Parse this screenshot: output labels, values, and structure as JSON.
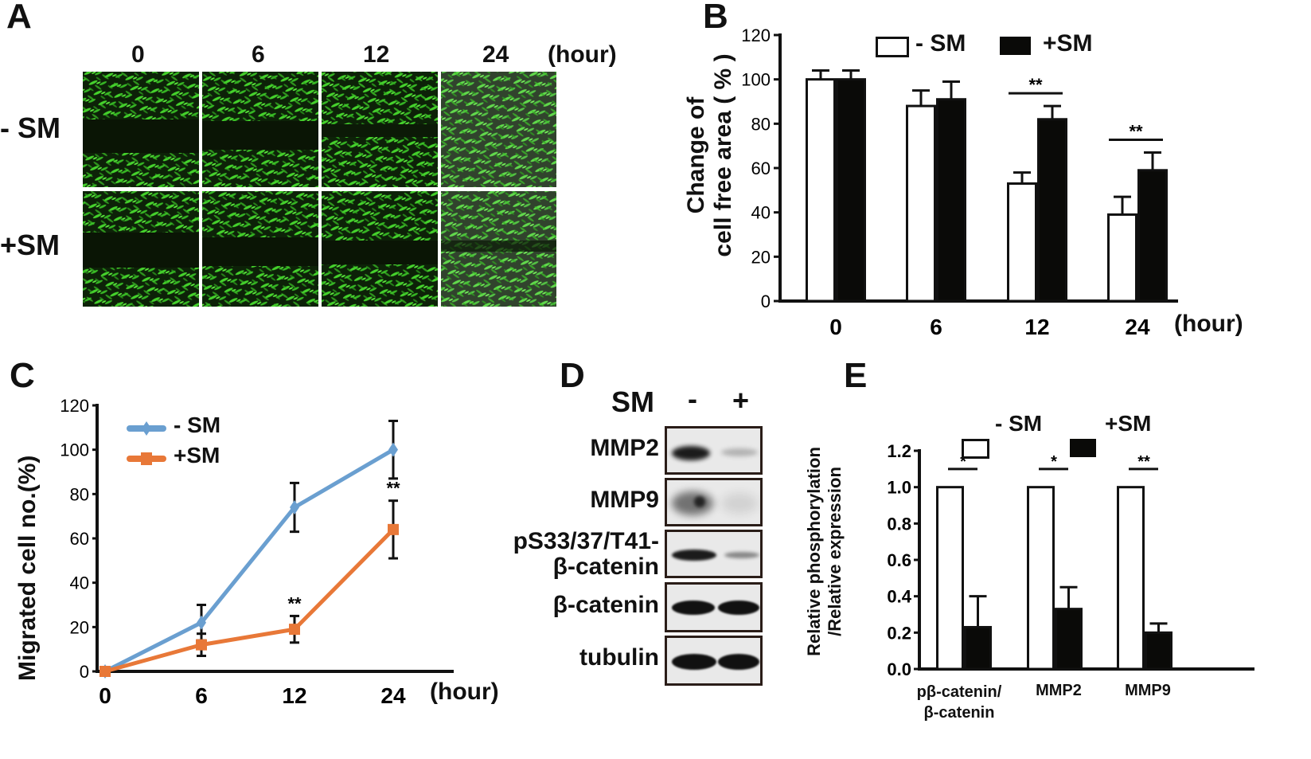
{
  "panels": {
    "A": {
      "letter": "A",
      "time_labels": [
        "0",
        "6",
        "12",
        "24"
      ],
      "unit": "(hour)",
      "row_labels": [
        "- SM",
        "+SM"
      ],
      "image_colors": {
        "cells": "#3fcf2a",
        "background": "#0b1a06"
      }
    },
    "B": {
      "letter": "B",
      "legend": [
        "- SM",
        "+SM"
      ],
      "unit": "(hour)",
      "ylabel_line1": "Change of",
      "ylabel_line2": "cell free area ( % )"
    },
    "C": {
      "letter": "C",
      "legend": [
        "- SM",
        "+SM"
      ],
      "unit": "(hour)",
      "ylabel": "Migrated cell no.(%)"
    },
    "D": {
      "letter": "D",
      "header_label": "SM",
      "lanes": [
        "-",
        "+"
      ],
      "rows": [
        {
          "label": "MMP2",
          "lane_intensity": [
            0.95,
            0.25
          ]
        },
        {
          "label": "MMP9",
          "lane_intensity": [
            0.7,
            0.1
          ]
        },
        {
          "label_line1": "pS33/37/T41-",
          "label_line2": "β-catenin",
          "lane_intensity": [
            0.95,
            0.4
          ]
        },
        {
          "label": "β-catenin",
          "lane_intensity": [
            1.0,
            1.0
          ]
        },
        {
          "label": "tubulin",
          "lane_intensity": [
            1.0,
            1.0
          ]
        }
      ]
    },
    "E": {
      "letter": "E",
      "legend": [
        "- SM",
        "+SM"
      ],
      "ylabel_line1": "Relative phosphorylation",
      "ylabel_line2": "/Relative expression",
      "xlabels": [
        [
          "pβ-catenin/",
          "β-catenin"
        ],
        [
          "MMP2"
        ],
        [
          "MMP9"
        ]
      ]
    }
  },
  "chart_data": [
    {
      "panel": "B",
      "type": "bar",
      "title": "",
      "xlabel": "(hour)",
      "ylabel": "Change of cell free area ( % )",
      "categories": [
        "0",
        "6",
        "12",
        "24"
      ],
      "series": [
        {
          "name": "- SM",
          "color": "#ffffff",
          "values": [
            100,
            88,
            53,
            39
          ],
          "errors": [
            4,
            7,
            5,
            8
          ]
        },
        {
          "name": "+SM",
          "color": "#0a0a08",
          "values": [
            100,
            91,
            82,
            59
          ],
          "errors": [
            4,
            8,
            6,
            8
          ]
        }
      ],
      "significance": [
        {
          "category": "12",
          "label": "**"
        },
        {
          "category": "24",
          "label": "**"
        }
      ],
      "ylim": [
        0,
        120
      ],
      "yticks": [
        0,
        20,
        40,
        60,
        80,
        100,
        120
      ],
      "grid": false,
      "legend_position": "top"
    },
    {
      "panel": "C",
      "type": "line",
      "title": "",
      "xlabel": "(hour)",
      "ylabel": "Migrated cell no.(%)",
      "x": [
        "0",
        "6",
        "12",
        "24"
      ],
      "series": [
        {
          "name": "- SM",
          "color": "#6a9fd0",
          "marker": "diamond",
          "values": [
            0,
            22,
            74,
            100
          ],
          "errors": [
            0,
            8,
            11,
            13
          ]
        },
        {
          "name": "+SM",
          "color": "#e87838",
          "marker": "square",
          "values": [
            0,
            12,
            19,
            64
          ],
          "errors": [
            0,
            5,
            6,
            13
          ]
        }
      ],
      "significance": [
        {
          "x": "12",
          "label": "**"
        },
        {
          "x": "24",
          "label": "**"
        }
      ],
      "ylim": [
        0,
        120
      ],
      "yticks": [
        0,
        20,
        40,
        60,
        80,
        100,
        120
      ],
      "grid": false,
      "legend_position": "top-left"
    },
    {
      "panel": "E",
      "type": "bar",
      "title": "",
      "xlabel": "",
      "ylabel": "Relative phosphorylation /Relative expression",
      "categories": [
        "pβ-catenin/β-catenin",
        "MMP2",
        "MMP9"
      ],
      "series": [
        {
          "name": "- SM",
          "color": "#ffffff",
          "values": [
            1.0,
            1.0,
            1.0
          ],
          "errors": [
            0,
            0,
            0
          ]
        },
        {
          "name": "+SM",
          "color": "#0a0a08",
          "values": [
            0.23,
            0.33,
            0.2
          ],
          "errors": [
            0.17,
            0.12,
            0.05
          ]
        }
      ],
      "significance": [
        {
          "category": "pβ-catenin/β-catenin",
          "label": "*"
        },
        {
          "category": "MMP2",
          "label": "*"
        },
        {
          "category": "MMP9",
          "label": "**"
        }
      ],
      "ylim": [
        0,
        1.2
      ],
      "yticks": [
        0.0,
        0.2,
        0.4,
        0.6,
        0.8,
        1.0,
        1.2
      ],
      "grid": false,
      "legend_position": "top"
    }
  ]
}
